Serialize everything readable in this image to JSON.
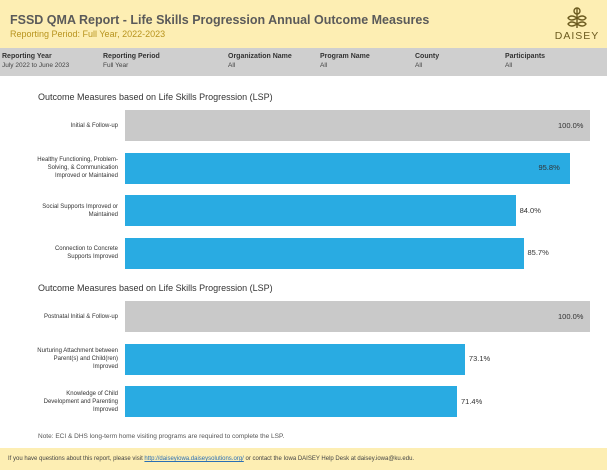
{
  "header": {
    "title": "FSSD QMA Report - Life Skills Progression Annual Outcome Measures",
    "subtitle": "Reporting Period: Full Year, 2022-2023",
    "logo": "DAISEY"
  },
  "filters": [
    {
      "label": "Reporting Year",
      "value": "July 2022 to June 2023"
    },
    {
      "label": "Reporting Period",
      "value": "Full Year"
    },
    {
      "label": "Organization Name",
      "value": "All"
    },
    {
      "label": "Program Name",
      "value": "All"
    },
    {
      "label": "County",
      "value": "All"
    },
    {
      "label": "Participants",
      "value": "All"
    }
  ],
  "chart_data": [
    {
      "type": "bar",
      "orientation": "horizontal",
      "title": "Outcome Measures based on Life Skills Progression (LSP)",
      "categories": [
        "Initial & Follow-up",
        "Healthy Functioning, Problem-Solving, & Communication Improved or Maintained",
        "Social Supports Improved or Maintained",
        "Connection to Concrete Supports Improved"
      ],
      "values": [
        100,
        95.8,
        84,
        85.7
      ],
      "value_labels": [
        "100.0%",
        "95.8%",
        "84.0%",
        "85.7%"
      ],
      "colors": [
        "#c9c9c9",
        "#29abe2",
        "#29abe2",
        "#29abe2"
      ],
      "xlim": [
        0,
        100
      ]
    },
    {
      "type": "bar",
      "orientation": "horizontal",
      "title": "Outcome Measures based on Life Skills Progression (LSP)",
      "categories": [
        "Postnatal Initial & Follow-up",
        "Nurturing Attachment between Parent(s) and Child(ren) Improved",
        "Knowledge of Child Development and Parenting Improved"
      ],
      "values": [
        100,
        73.1,
        71.4
      ],
      "value_labels": [
        "100.0%",
        "73.1%",
        "71.4%"
      ],
      "colors": [
        "#c9c9c9",
        "#29abe2",
        "#29abe2"
      ],
      "xlim": [
        0,
        100
      ]
    }
  ],
  "note": "Note: ECI & DHS long-term home visiting programs are required to complete the LSP.",
  "footer": {
    "before": "If you have questions about this report, please visit ",
    "link": "http://daiseyiowa.daiseysolutions.org/",
    "after": " or contact the Iowa DAISEY Help Desk at daisey.iowa@ku.edu."
  }
}
